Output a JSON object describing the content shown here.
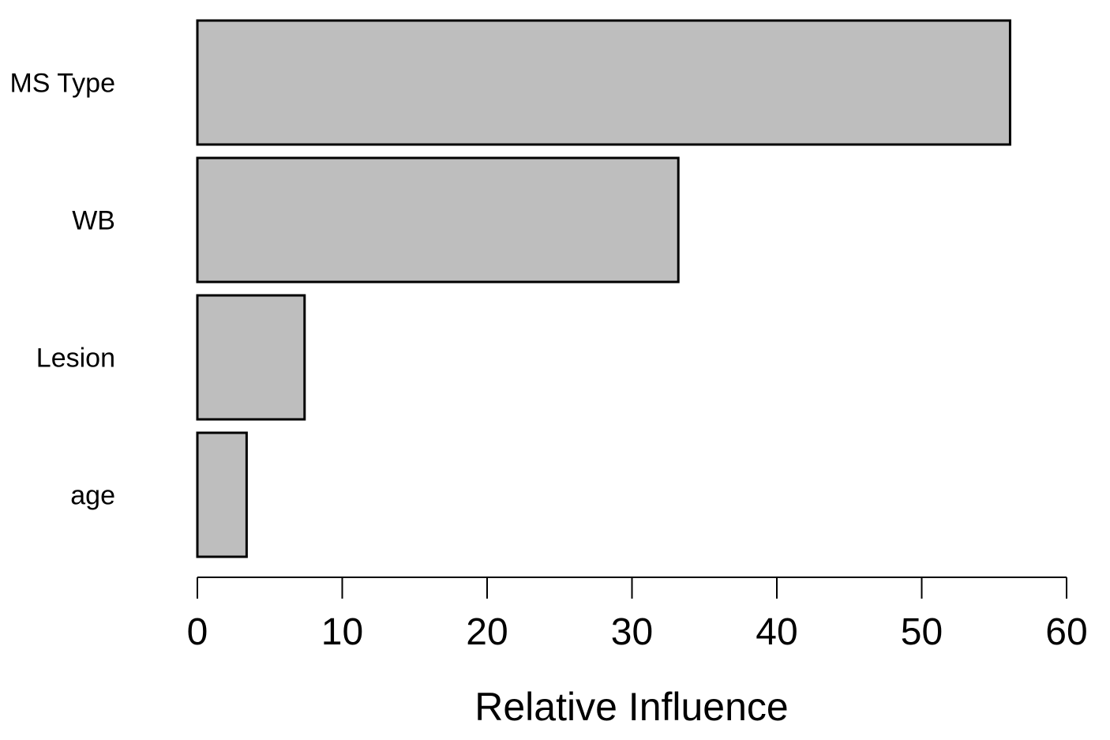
{
  "chart_data": {
    "type": "bar",
    "orientation": "horizontal",
    "categories": [
      "MS Type",
      "WB",
      "Lesion",
      "age"
    ],
    "values": [
      56.1,
      33.2,
      7.4,
      3.4
    ],
    "title": "",
    "xlabel": "Relative Influence",
    "ylabel": "",
    "xlim": [
      0,
      60
    ],
    "xticks": [
      0,
      10,
      20,
      30,
      40,
      50,
      60
    ],
    "grid": false,
    "legend": "none",
    "bar_fill": "#bebebe",
    "bar_edge": "#000000"
  }
}
